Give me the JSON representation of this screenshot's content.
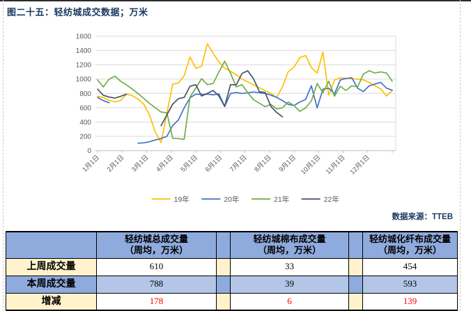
{
  "page": {
    "title": "图二十五：轻纺城成交数据；万米",
    "source": "数据来源：TTEB"
  },
  "chart_data": {
    "type": "line",
    "title": "",
    "unit": "万米",
    "x_axis_note": "weekly points, Jan 1 - Dec 31",
    "x_tick_labels": [
      "1月1日",
      "2月1日",
      "3月1日",
      "4月1日",
      "5月1日",
      "6月1日",
      "7月1日",
      "8月1日",
      "9月1日",
      "10月1日",
      "11月1日",
      "12月1日"
    ],
    "y_ticks": [
      0,
      200,
      400,
      600,
      800,
      1000,
      1200,
      1400,
      1600
    ],
    "y_range": [
      0,
      1600
    ],
    "grid": true,
    "legend_position": "bottom",
    "series": [
      {
        "name": "19年",
        "color": "#FFC000",
        "values": [
          760,
          745,
          700,
          685,
          700,
          790,
          770,
          720,
          650,
          500,
          260,
          113,
          520,
          930,
          945,
          1050,
          1310,
          1150,
          1180,
          1494,
          1360,
          1240,
          1150,
          1110,
          1060,
          1000,
          960,
          920,
          880,
          840,
          800,
          745,
          890,
          1104,
          1166,
          1300,
          1330,
          1160,
          1085,
          1377,
          777,
          988,
          1020,
          1010,
          1005,
          1000,
          990,
          955,
          908,
          862,
          764,
          842
        ]
      },
      {
        "name": "20年",
        "color": "#4472C4",
        "values": [
          745,
          700,
          670,
          null,
          null,
          null,
          null,
          105,
          110,
          125,
          150,
          170,
          200,
          350,
          430,
          600,
          740,
          790,
          785,
          790,
          780,
          795,
          618,
          800,
          813,
          800,
          810,
          820,
          810,
          800,
          777,
          745,
          700,
          647,
          631,
          680,
          715,
          907,
          599,
          860,
          874,
          793,
          988,
          1010,
          1020,
          874,
          825,
          907,
          930,
          955,
          874,
          845
        ]
      },
      {
        "name": "21年",
        "color": "#70AD47",
        "values": [
          990,
          890,
          1000,
          1040,
          970,
          920,
          860,
          800,
          730,
          660,
          600,
          540,
          530,
          175,
          168,
          160,
          750,
          874,
          1007,
          922,
          939,
          1100,
          1250,
          1085,
          890,
          922,
          810,
          713,
          664,
          615,
          647,
          583,
          600,
          680,
          631,
          550,
          599,
          696,
          939,
          810,
          971,
          761,
          900,
          842,
          907,
          890,
          1069,
          1117,
          1085,
          1101,
          1085,
          971
        ]
      },
      {
        "name": "22年",
        "color": "#44546A",
        "values": [
          860,
          775,
          750,
          735,
          760,
          790,
          null,
          null,
          null,
          null,
          null,
          350,
          500,
          650,
          727,
          745,
          900,
          922,
          764,
          800,
          842,
          764,
          618,
          922,
          920,
          1080,
          1117,
          1004,
          825,
          813,
          618,
          535,
          473
        ]
      }
    ]
  },
  "table": {
    "header": [
      "",
      "轻纺城总成交量\n（周均，万米）",
      "轻纺城棉布成交量\n（周均，万米）",
      "轻纺城化纤布成交量\n（周均，万米）"
    ],
    "rows": [
      {
        "label": "上周成交量",
        "values": [
          "610",
          "33",
          "454"
        ],
        "red": false
      },
      {
        "label": "本周成交量",
        "values": [
          "788",
          "39",
          "593"
        ],
        "red": false
      },
      {
        "label": "增减",
        "values": [
          "178",
          "6",
          "139"
        ],
        "red": true
      }
    ]
  },
  "colors": {
    "header_blue": "#8FAADC",
    "row_blue": "#B4C6E7",
    "cream": "#FFF2CC",
    "white": "#FFFFFF",
    "accent_navy": "#17375E",
    "red": "#FF0000",
    "grid": "#D9D9D9",
    "axis": "#BFBFBF",
    "tick_text": "#595959"
  }
}
